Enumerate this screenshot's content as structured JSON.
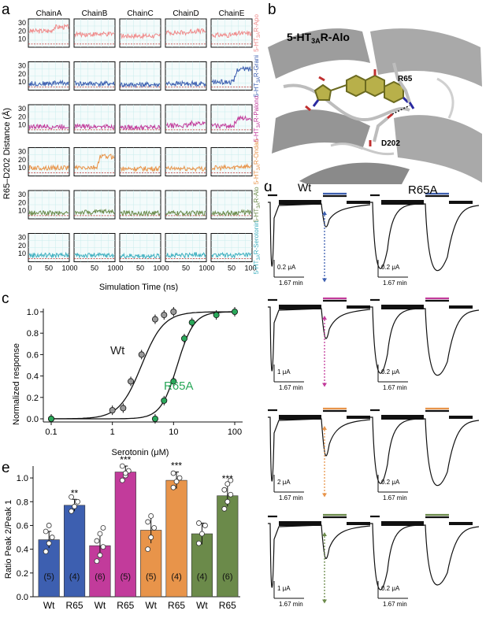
{
  "panel_labels": {
    "a": "a",
    "b": "b",
    "c": "c",
    "d": "d",
    "e": "e"
  },
  "panel_a": {
    "chains": [
      "ChainA",
      "ChainB",
      "ChainC",
      "ChainD",
      "ChainE"
    ],
    "ylabel": "R65–D202 Distance (Å)",
    "xlabel": "Simulation Time (ns)",
    "xticks": [
      "0",
      "50",
      "100"
    ],
    "rows": [
      {
        "label": "5-HT3AR-Apo",
        "label_main": "5-HT",
        "label_sub": "3A",
        "label_rest": "R-Apo",
        "color": "#f08a8a",
        "yticks": [
          "30",
          "20",
          "10"
        ],
        "levels": [
          20,
          16,
          14,
          18,
          15
        ],
        "final": [
          25,
          16,
          14,
          20,
          17
        ]
      },
      {
        "label": "5-HT3AR-Grani",
        "label_main": "5-HT",
        "label_sub": "3A",
        "label_rest": "R-Grani",
        "color": "#3d5fb0",
        "yticks": [
          "30",
          "20",
          "10"
        ],
        "levels": [
          8,
          8,
          7,
          8,
          10
        ],
        "final": [
          9,
          8,
          7,
          8,
          26
        ]
      },
      {
        "label": "5-HT3AR-Palono",
        "label_main": "5-HT",
        "label_sub": "3A",
        "label_rest": "R-Palono",
        "color": "#c23b9b",
        "yticks": [
          "30",
          "20",
          "10"
        ],
        "levels": [
          8,
          8,
          7,
          9,
          9
        ],
        "final": [
          8,
          8,
          7,
          12,
          18
        ]
      },
      {
        "label": "5-HT3AR-Ondan",
        "label_main": "5-HT",
        "label_sub": "3A",
        "label_rest": "R-Ondan",
        "color": "#e8944a",
        "yticks": [
          "30",
          "20",
          "10"
        ],
        "levels": [
          10,
          10,
          9,
          9,
          10
        ],
        "final": [
          10,
          24,
          9,
          9,
          12
        ]
      },
      {
        "label": "5-HT3AR-Alo",
        "label_main": "5-HT",
        "label_sub": "3A",
        "label_rest": "R-Alo",
        "color": "#6b8a4a",
        "yticks": [
          "30",
          "20",
          "10"
        ],
        "levels": [
          7,
          8,
          7,
          7,
          7
        ],
        "final": [
          7,
          9,
          7,
          7,
          8
        ]
      },
      {
        "label": "5-HT3AR-Serotonin",
        "label_main": "5-HT",
        "label_sub": "3A",
        "label_rest": "R-Serotonin",
        "color": "#3fb0c0",
        "yticks": [
          "30",
          "20",
          "10"
        ],
        "levels": [
          8,
          8,
          7,
          8,
          8
        ],
        "final": [
          8,
          8,
          7,
          9,
          8
        ]
      }
    ]
  },
  "panel_b": {
    "title_main": "5-HT",
    "title_sub": "3A",
    "title_rest": "R-Alo",
    "title_color": "#6b8a4a",
    "residue1": "R65",
    "residue2": "D202"
  },
  "panel_c": {
    "chart_data": {
      "type": "scatter",
      "xlabel": "Serotonin (μM)",
      "ylabel": "Normalized response",
      "xscale": "log",
      "xlim": [
        0.1,
        100
      ],
      "ylim": [
        0,
        1.0
      ],
      "xticks": [
        "0.1",
        "1",
        "10",
        "100"
      ],
      "yticks": [
        "0.0",
        "0.2",
        "0.4",
        "0.6",
        "0.8",
        "1.0"
      ],
      "series": [
        {
          "name": "Wt",
          "color": "#9a9a9a",
          "x": [
            0.1,
            1,
            1.5,
            2,
            3,
            5,
            7,
            10
          ],
          "y": [
            0.0,
            0.08,
            0.1,
            0.35,
            0.6,
            0.93,
            0.97,
            1.0
          ],
          "ec50": 3.0,
          "hill": 2.4
        },
        {
          "name": "R65A",
          "color": "#2aa85a",
          "x": [
            0.1,
            5,
            7,
            10,
            15,
            20,
            50,
            100
          ],
          "y": [
            0.0,
            0.0,
            0.17,
            0.35,
            0.75,
            0.9,
            0.97,
            1.0
          ],
          "ec50": 11.5,
          "hill": 3.2
        }
      ],
      "labels": {
        "wt": "Wt",
        "r65a": "R65A"
      }
    }
  },
  "panel_d": {
    "col_labels": {
      "wt": "Wt",
      "r65a": "R65A"
    },
    "wt_color": "#111111",
    "r65a_color": "#2aa85a",
    "rows": [
      {
        "color": "#3d5fb0",
        "scale_wt": "0.2 μA",
        "scale_r65": "0.2 μA",
        "time": "1.67 min",
        "wt_peak2": 0.35,
        "r65_peak2": 1.0
      },
      {
        "color": "#c23b9b",
        "scale_wt": "1 μA",
        "scale_r65": "0.2 μA",
        "time": "1.67 min",
        "wt_peak2": 0.45,
        "r65_peak2": 1.0
      },
      {
        "color": "#e8944a",
        "scale_wt": "2 μA",
        "scale_r65": "0.2 μA",
        "time": "1.67 min",
        "wt_peak2": 0.55,
        "r65_peak2": 1.0
      },
      {
        "color": "#6b8a4a",
        "scale_wt": "1 μA",
        "scale_r65": "0.2 μA",
        "time": "1.67 min",
        "wt_peak2": 0.5,
        "r65_peak2": 0.9
      }
    ]
  },
  "panel_e": {
    "chart_data": {
      "type": "bar",
      "ylabel": "Ratio Peak 2/Peak 1",
      "ylim": [
        0,
        1.1
      ],
      "yticks": [
        "0.0",
        "0.2",
        "0.4",
        "0.6",
        "0.8",
        "1.0"
      ],
      "categories": [
        "Wt",
        "R65",
        "Wt",
        "R65",
        "Wt",
        "R65",
        "Wt",
        "R65"
      ],
      "values": [
        0.48,
        0.77,
        0.43,
        1.05,
        0.56,
        0.98,
        0.53,
        0.85
      ],
      "errors": [
        0.07,
        0.05,
        0.1,
        0.05,
        0.11,
        0.07,
        0.09,
        0.09
      ],
      "n_labels": [
        "(5)",
        "(4)",
        "(6)",
        "(5)",
        "(5)",
        "(4)",
        "(4)",
        "(6)"
      ],
      "significance": [
        "",
        "**",
        "",
        "***",
        "",
        "***",
        "",
        "***"
      ],
      "colors": [
        "#3d5fb0",
        "#3d5fb0",
        "#c23b9b",
        "#c23b9b",
        "#e8944a",
        "#e8944a",
        "#6b8a4a",
        "#6b8a4a"
      ],
      "points": [
        [
          0.38,
          0.45,
          0.5,
          0.55,
          0.6
        ],
        [
          0.72,
          0.76,
          0.8,
          0.84
        ],
        [
          0.3,
          0.35,
          0.42,
          0.47,
          0.53,
          0.58
        ],
        [
          0.98,
          1.02,
          1.06,
          1.1,
          1.04
        ],
        [
          0.4,
          0.5,
          0.58,
          0.63,
          0.68
        ],
        [
          0.92,
          0.97,
          1.0,
          1.04
        ],
        [
          0.45,
          0.53,
          0.6,
          0.62
        ],
        [
          0.74,
          0.8,
          0.86,
          0.9,
          0.95,
          0.98
        ]
      ]
    }
  }
}
